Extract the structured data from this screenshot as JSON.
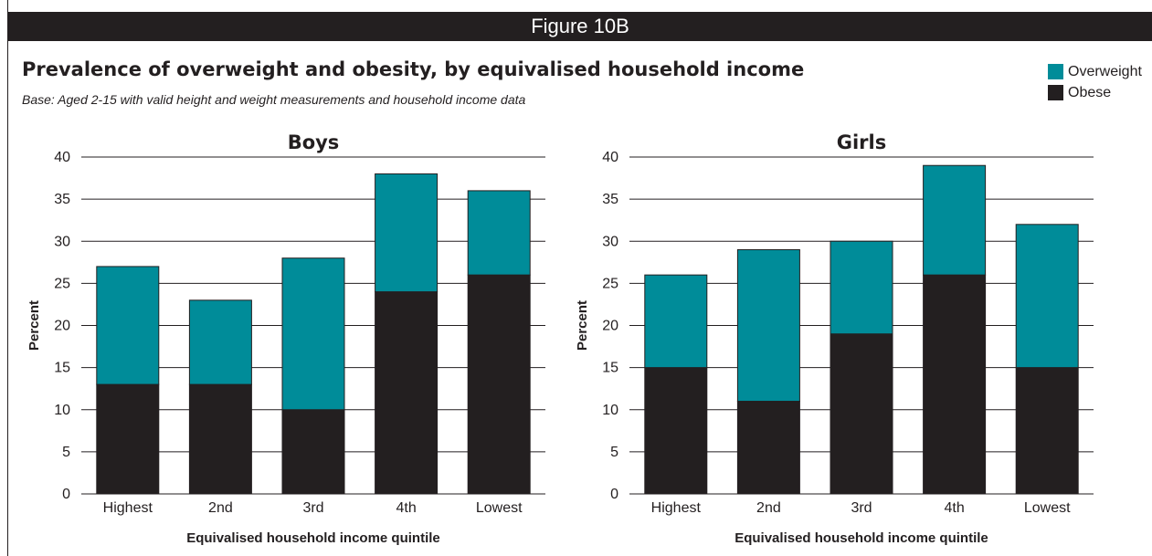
{
  "banner": "Figure 10B",
  "title": "Prevalence of overweight and obesity, by equivalised household income",
  "base_note": "Base: Aged 2-15 with valid height and weight measurements and  household income data",
  "colors": {
    "overweight": "#008c99",
    "obese": "#231f20",
    "text": "#231f20"
  },
  "legend": [
    {
      "label": "Overweight",
      "color": "#008c99"
    },
    {
      "label": "Obese",
      "color": "#231f20"
    }
  ],
  "chart_data": [
    {
      "type": "bar",
      "stacked": true,
      "title": "Boys",
      "xlabel": "Equivalised household income quintile",
      "ylabel": "Percent",
      "ylim": [
        0,
        40
      ],
      "yticks": [
        0,
        5,
        10,
        15,
        20,
        25,
        30,
        35,
        40
      ],
      "grid": true,
      "legend_position": "top-right",
      "categories": [
        "Highest",
        "2nd",
        "3rd",
        "4th",
        "Lowest"
      ],
      "series": [
        {
          "name": "Obese",
          "values": [
            13,
            13,
            10,
            24,
            26
          ]
        },
        {
          "name": "Overweight",
          "values": [
            14,
            10,
            18,
            14,
            10
          ]
        }
      ]
    },
    {
      "type": "bar",
      "stacked": true,
      "title": "Girls",
      "xlabel": "Equivalised household income quintile",
      "ylabel": "Percent",
      "ylim": [
        0,
        40
      ],
      "yticks": [
        0,
        5,
        10,
        15,
        20,
        25,
        30,
        35,
        40
      ],
      "grid": true,
      "legend_position": "top-right",
      "categories": [
        "Highest",
        "2nd",
        "3rd",
        "4th",
        "Lowest"
      ],
      "series": [
        {
          "name": "Obese",
          "values": [
            15,
            11,
            19,
            26,
            15
          ]
        },
        {
          "name": "Overweight",
          "values": [
            11,
            18,
            11,
            13,
            17
          ]
        }
      ]
    }
  ]
}
